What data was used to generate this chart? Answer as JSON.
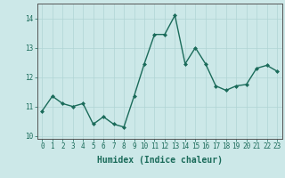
{
  "x": [
    0,
    1,
    2,
    3,
    4,
    5,
    6,
    7,
    8,
    9,
    10,
    11,
    12,
    13,
    14,
    15,
    16,
    17,
    18,
    19,
    20,
    21,
    22,
    23
  ],
  "y": [
    10.85,
    11.35,
    11.1,
    11.0,
    11.1,
    10.4,
    10.65,
    10.4,
    10.3,
    11.35,
    12.45,
    13.45,
    13.45,
    14.1,
    12.45,
    13.0,
    12.45,
    11.7,
    11.55,
    11.7,
    11.75,
    12.3,
    12.4,
    12.2
  ],
  "line_color": "#1a6b5a",
  "marker": "D",
  "marker_size": 2,
  "linewidth": 1.0,
  "xlabel": "Humidex (Indice chaleur)",
  "xlim": [
    -0.5,
    23.5
  ],
  "ylim": [
    9.9,
    14.5
  ],
  "yticks": [
    10,
    11,
    12,
    13,
    14
  ],
  "xticks": [
    0,
    1,
    2,
    3,
    4,
    5,
    6,
    7,
    8,
    9,
    10,
    11,
    12,
    13,
    14,
    15,
    16,
    17,
    18,
    19,
    20,
    21,
    22,
    23
  ],
  "xtick_labels": [
    "0",
    "1",
    "2",
    "3",
    "4",
    "5",
    "6",
    "7",
    "8",
    "9",
    "10",
    "11",
    "12",
    "13",
    "14",
    "15",
    "16",
    "17",
    "18",
    "19",
    "20",
    "21",
    "22",
    "23"
  ],
  "background_color": "#cce8e8",
  "grid_color": "#b0d4d4",
  "tick_fontsize": 5.5,
  "xlabel_fontsize": 7,
  "tick_color": "#1a6b5a",
  "spine_color": "#555555"
}
